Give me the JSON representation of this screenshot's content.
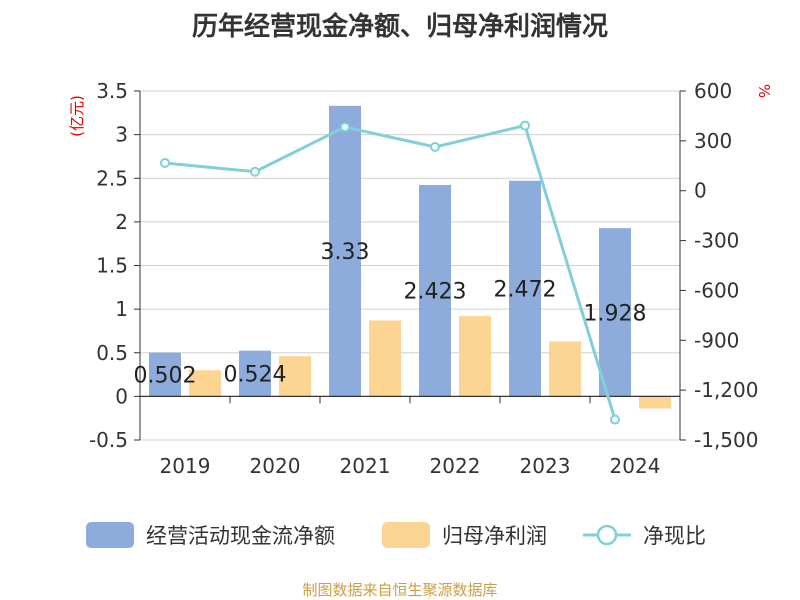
{
  "chart_data": {
    "type": "bar",
    "title": "历年经营现金净额、归母净利润情况",
    "categories": [
      "2019",
      "2020",
      "2021",
      "2022",
      "2023",
      "2024"
    ],
    "series": [
      {
        "name": "经营活动现金流净额",
        "axis": "left",
        "color": "#8eacdb",
        "values": [
          0.502,
          0.524,
          3.33,
          2.423,
          2.472,
          1.928
        ],
        "data_labels": [
          "0.502",
          "0.524",
          "3.33",
          "2.423",
          "2.472",
          "1.928"
        ]
      },
      {
        "name": "归母净利润",
        "axis": "left",
        "color": "#fdd593",
        "values": [
          0.3,
          0.46,
          0.87,
          0.92,
          0.63,
          -0.14
        ]
      },
      {
        "name": "净现比",
        "type": "line",
        "axis": "right",
        "color": "#80d0d6",
        "values": [
          167,
          114,
          383,
          263,
          392,
          -1377
        ]
      }
    ],
    "y_left": {
      "label": "(亿元)",
      "ylim": [
        -0.5,
        3.5
      ],
      "ticks": [
        "-0.5",
        "0",
        "0.5",
        "1",
        "1.5",
        "2",
        "2.5",
        "3",
        "3.5"
      ],
      "tick_values": [
        -0.5,
        0,
        0.5,
        1,
        1.5,
        2,
        2.5,
        3,
        3.5
      ]
    },
    "y_right": {
      "label": "%",
      "ylim": [
        -1500,
        600
      ],
      "ticks": [
        "600",
        "300",
        "0",
        "-300",
        "-600",
        "-900",
        "-1,200",
        "-1,500"
      ],
      "tick_values": [
        600,
        300,
        0,
        -300,
        -600,
        -900,
        -1200,
        -1500
      ]
    },
    "grid": true,
    "legend": "bottom"
  },
  "source_text": "制图数据来自恒生聚源数据库"
}
